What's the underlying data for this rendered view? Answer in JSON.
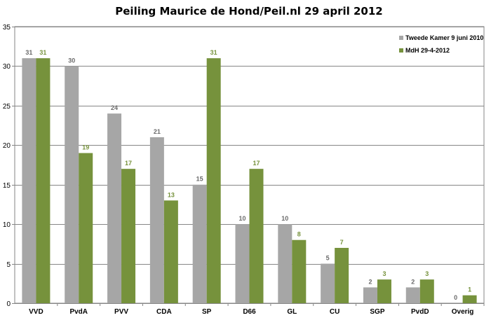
{
  "chart_data": {
    "type": "bar",
    "title": "Peiling Maurice de Hond/Peil.nl 29 april 2012",
    "xlabel": "",
    "ylabel": "",
    "ylim": [
      0,
      35
    ],
    "yticks": [
      0,
      5,
      10,
      15,
      20,
      25,
      30,
      35
    ],
    "grid": true,
    "legend_position": "top-right",
    "categories": [
      "VVD",
      "PvdA",
      "PVV",
      "CDA",
      "SP",
      "D66",
      "GL",
      "CU",
      "SGP",
      "PvdD",
      "Overig"
    ],
    "series": [
      {
        "name": "Tweede Kamer 9 juni 2010",
        "color": "#a6a6a6",
        "label_color": "#6b6b6b",
        "values": [
          31,
          30,
          24,
          21,
          15,
          10,
          10,
          5,
          2,
          2,
          0
        ]
      },
      {
        "name": "MdH 29-4-2012",
        "color": "#76923c",
        "label_color": "#76923c",
        "values": [
          31,
          19,
          17,
          13,
          31,
          17,
          8,
          7,
          3,
          3,
          1
        ]
      }
    ]
  }
}
